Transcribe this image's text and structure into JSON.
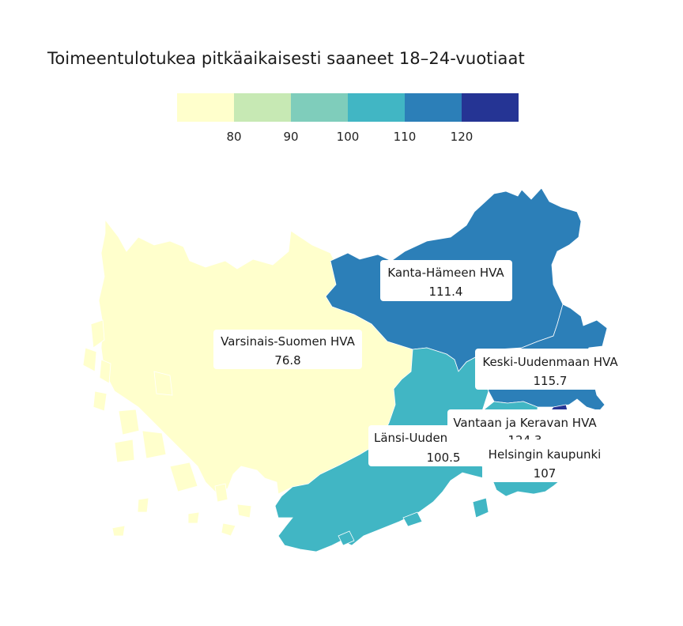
{
  "title": "Toimeentulotukea pitkäaikaisesti saaneet 18–24-vuotiaat",
  "legend": {
    "colors": [
      "#ffffcc",
      "#c7e9b4",
      "#7fcdbb",
      "#41b6c4",
      "#2c7fb8",
      "#253494"
    ],
    "ticks": [
      "80",
      "90",
      "100",
      "110",
      "120"
    ]
  },
  "regions": [
    {
      "id": "varsinais-suomen-hva",
      "name": "Varsinais-Suomen HVA",
      "value": "76.8",
      "color": "#ffffcc"
    },
    {
      "id": "kanta-hameen-hva",
      "name": "Kanta-Hämeen HVA",
      "value": "111.4",
      "color": "#2c7fb8"
    },
    {
      "id": "keski-uudenmaan-hva",
      "name": "Keski-Uudenmaan HVA",
      "value": "115.7",
      "color": "#2c7fb8"
    },
    {
      "id": "lansi-uudenmaan-hva",
      "name": "Länsi-Uuden",
      "value": "100.5",
      "color": "#41b6c4"
    },
    {
      "id": "vantaan-ja-keravan-hva",
      "name": "Vantaan ja Keravan HVA",
      "value": "124.3",
      "color": "#253494"
    },
    {
      "id": "helsingin-kaupunki",
      "name": "Helsingin kaupunki",
      "value": "107",
      "color": "#41b6c4"
    }
  ]
}
